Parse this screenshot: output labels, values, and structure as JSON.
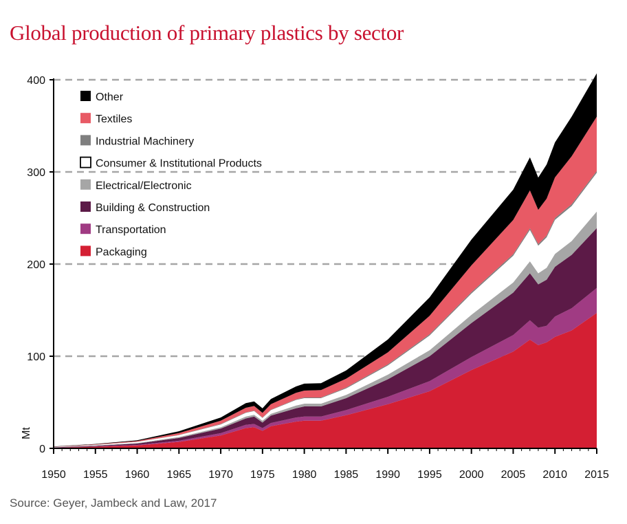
{
  "title": "Global production of primary plastics by sector",
  "source": "Source: Geyer, Jambeck and Law, 2017",
  "chart_data": {
    "type": "area",
    "stacked": true,
    "ylabel": "Mt",
    "xlabel": "",
    "ylim": [
      0,
      400
    ],
    "xlim": [
      1950,
      2015
    ],
    "yticks": [
      0,
      100,
      200,
      300,
      400
    ],
    "xticks": [
      1950,
      1955,
      1960,
      1965,
      1970,
      1975,
      1980,
      1985,
      1990,
      1995,
      2000,
      2005,
      2010,
      2015
    ],
    "grid": "horizontal dashed at 100, 200, 300, 400",
    "legend_position": "top-left",
    "x": [
      1950,
      1955,
      1960,
      1965,
      1970,
      1973,
      1974,
      1975,
      1976,
      1979,
      1980,
      1982,
      1985,
      1990,
      1995,
      2000,
      2005,
      2007,
      2008,
      2009,
      2010,
      2012,
      2015
    ],
    "series": [
      {
        "name": "Packaging",
        "color": "#d41f33",
        "values": [
          0.7,
          1.8,
          3.2,
          7,
          14,
          22,
          23,
          19,
          24,
          29,
          30,
          30,
          36,
          48,
          62,
          85,
          105,
          118,
          112,
          115,
          121,
          128,
          147
        ]
      },
      {
        "name": "Transportation",
        "color": "#a03b83",
        "values": [
          0.1,
          0.2,
          0.5,
          1.3,
          2.5,
          3.5,
          3.5,
          3,
          3.5,
          4.5,
          4.5,
          4.5,
          5.5,
          8,
          11,
          14,
          18,
          21,
          19,
          18,
          22,
          24,
          27
        ]
      },
      {
        "name": "Building & Construction",
        "color": "#5c1a47",
        "values": [
          0.3,
          0.8,
          1.5,
          3,
          5,
          7,
          8,
          6,
          8,
          10,
          11,
          11,
          13,
          19,
          27,
          37,
          46,
          51,
          47,
          50,
          54,
          58,
          65
        ]
      },
      {
        "name": "Electrical/Electronic",
        "color": "#a6a6a6",
        "values": [
          0.1,
          0.3,
          0.6,
          1,
          1.5,
          2,
          2,
          2,
          2,
          3,
          3,
          3,
          3.5,
          5,
          6.5,
          9,
          11,
          13,
          12,
          13,
          14,
          15,
          18
        ]
      },
      {
        "name": "Consumer & Institutional Products",
        "color": "#ffffff",
        "values": [
          0.3,
          0.7,
          1.2,
          2,
          3,
          4,
          4,
          3,
          4,
          6,
          6,
          6,
          7,
          10,
          16,
          23,
          29,
          34,
          30,
          33,
          37,
          38,
          42
        ]
      },
      {
        "name": "Industrial Machinery",
        "color": "#7f7f7f",
        "values": [
          0.1,
          0.1,
          0.2,
          0.3,
          0.5,
          0.5,
          0.5,
          0.5,
          0.5,
          0.7,
          0.7,
          0.7,
          1,
          1.2,
          1.4,
          1.6,
          1.8,
          1.9,
          1.9,
          2,
          2,
          2,
          2
        ]
      },
      {
        "name": "Textiles",
        "color": "#e85a65",
        "values": [
          0.2,
          0.5,
          0.8,
          2,
          3.5,
          5,
          5,
          5,
          6,
          7,
          7.5,
          8,
          9.5,
          13,
          20,
          29,
          37,
          41,
          37,
          40,
          44,
          52,
          59
        ]
      },
      {
        "name": "Other",
        "color": "#000000",
        "values": [
          0.2,
          0.4,
          0.8,
          2,
          3.5,
          5,
          5,
          5,
          5.5,
          7,
          7.5,
          7.5,
          9,
          14,
          20,
          28,
          33,
          36,
          35,
          37,
          38,
          43,
          47
        ]
      }
    ]
  }
}
